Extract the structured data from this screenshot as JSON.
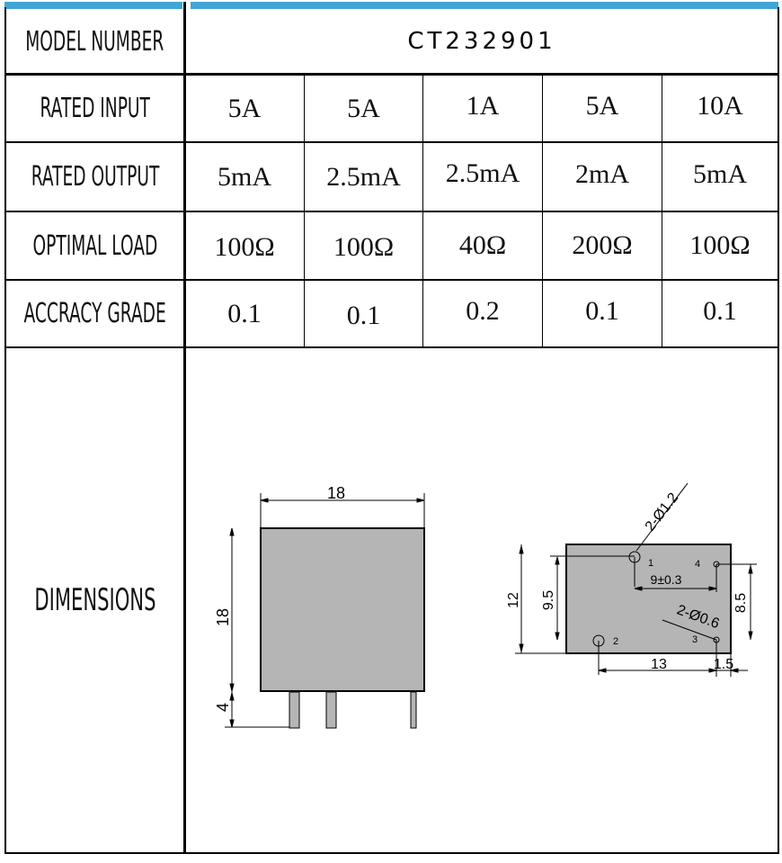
{
  "colors": {
    "header_bar": "#42a6d4",
    "drawing_fill": "#b5b5b5"
  },
  "model_label": "MODEL NUMBER",
  "model_value": "CT232901",
  "rows": [
    {
      "label": "RATED INPUT",
      "values": [
        "5A",
        "5A",
        "1A",
        "5A",
        "10A"
      ]
    },
    {
      "label": "RATED OUTPUT",
      "values": [
        "5mA",
        "2.5mA",
        "2.5mA",
        "2mA",
        "5mA"
      ]
    },
    {
      "label": "OPTIMAL LOAD",
      "values": [
        "100Ω",
        "100Ω",
        "40Ω",
        "200Ω",
        "100Ω"
      ]
    },
    {
      "label": "ACCRACY GRADE",
      "values": [
        "0.1",
        "0.1",
        "0.2",
        "0.1",
        "0.1"
      ]
    }
  ],
  "dimensions": {
    "label": "DIMENSIONS",
    "side_view": {
      "width": "18",
      "height": "18",
      "pin_length": "4"
    },
    "bottom_view": {
      "height": "12",
      "pin_row_distance": "9.5",
      "right_pin_distance": "8.5",
      "pin_spacing_top": "9±0.3",
      "pin_spacing_bottom": "13",
      "edge_offset": "1.5",
      "large_hole": "2-Ø1.2",
      "small_hole": "2-Ø0.6",
      "pins": [
        "1",
        "2",
        "3",
        "4"
      ]
    }
  }
}
